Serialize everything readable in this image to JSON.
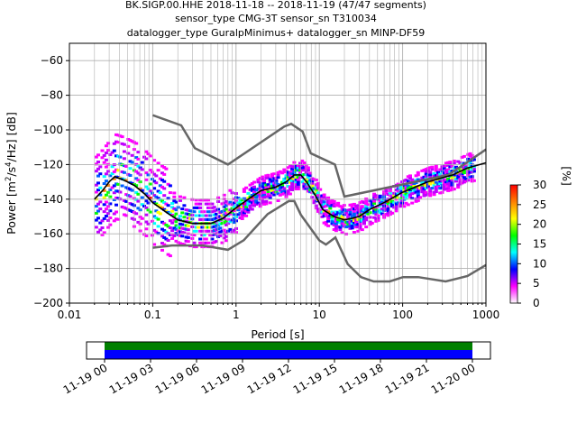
{
  "chart_data": {
    "type": "heatmap",
    "title_lines": [
      "BK.SIGP.00.HHE   2018-11-18 -- 2018-11-19  (47/47 segments)",
      "sensor_type CMG-3T sensor_sn T310034",
      "datalogger_type GuralpMinimus+ datalogger_sn MINP-DF59"
    ],
    "xlabel": "Period [s]",
    "ylabel_parts": [
      "Power [m",
      "2",
      "/s",
      "4",
      "/Hz] [dB]"
    ],
    "x_scale": "log",
    "xlim": [
      0.01,
      1000
    ],
    "ylim": [
      -200,
      -50
    ],
    "x_ticks": [
      {
        "value": 0.01,
        "label": "0.01"
      },
      {
        "value": 0.1,
        "label": "0.1"
      },
      {
        "value": 1,
        "label": "1"
      },
      {
        "value": 10,
        "label": "10"
      },
      {
        "value": 100,
        "label": "100"
      },
      {
        "value": 1000,
        "label": "1000"
      }
    ],
    "y_ticks": [
      {
        "value": -60,
        "label": "−60"
      },
      {
        "value": -80,
        "label": "−80"
      },
      {
        "value": -100,
        "label": "−100"
      },
      {
        "value": -120,
        "label": "−120"
      },
      {
        "value": -140,
        "label": "−140"
      },
      {
        "value": -160,
        "label": "−160"
      },
      {
        "value": -180,
        "label": "−180"
      },
      {
        "value": -200,
        "label": "−200"
      }
    ],
    "grid": true,
    "nhnm": [
      [
        0.1,
        -168
      ],
      [
        0.17,
        -166.7
      ],
      [
        0.4,
        -166.7
      ],
      [
        0.8,
        -169.2
      ],
      [
        1.24,
        -163.7
      ],
      [
        2.4,
        -148.6
      ],
      [
        4.3,
        -141.1
      ],
      [
        5.0,
        -141.1
      ],
      [
        6.0,
        -149
      ],
      [
        10.0,
        -163.8
      ],
      [
        12.0,
        -166.2
      ],
      [
        15.6,
        -162.1
      ],
      [
        21.9,
        -177.5
      ],
      [
        31.6,
        -185
      ],
      [
        45,
        -187.5
      ],
      [
        70,
        -187.5
      ],
      [
        101,
        -185
      ],
      [
        154,
        -185
      ],
      [
        328,
        -187.5
      ],
      [
        600,
        -184.4
      ],
      [
        1000,
        -178
      ]
    ],
    "nlnm": [
      [
        0.1,
        -91.5
      ],
      [
        0.22,
        -97.4
      ],
      [
        0.32,
        -110.5
      ],
      [
        0.8,
        -120
      ],
      [
        3.8,
        -98
      ],
      [
        4.6,
        -96.5
      ],
      [
        6.3,
        -101
      ],
      [
        7.9,
        -113.5
      ],
      [
        15.4,
        -120
      ],
      [
        20,
        -138.5
      ],
      [
        354.8,
        -126
      ],
      [
        1000,
        -111.3
      ]
    ],
    "mean": [
      [
        0.02,
        -140
      ],
      [
        0.025,
        -135
      ],
      [
        0.03,
        -130
      ],
      [
        0.035,
        -127
      ],
      [
        0.045,
        -129
      ],
      [
        0.06,
        -132
      ],
      [
        0.08,
        -137
      ],
      [
        0.1,
        -142
      ],
      [
        0.15,
        -148
      ],
      [
        0.2,
        -152
      ],
      [
        0.3,
        -154
      ],
      [
        0.5,
        -154
      ],
      [
        0.7,
        -151
      ],
      [
        1.0,
        -145
      ],
      [
        1.5,
        -139
      ],
      [
        2.0,
        -135
      ],
      [
        3.0,
        -133
      ],
      [
        4.0,
        -130
      ],
      [
        5.0,
        -126
      ],
      [
        6.0,
        -126
      ],
      [
        7.0,
        -130
      ],
      [
        9.0,
        -138
      ],
      [
        11.0,
        -146
      ],
      [
        15.0,
        -150
      ],
      [
        20.0,
        -152
      ],
      [
        25.0,
        -151
      ],
      [
        30.0,
        -150
      ],
      [
        40.0,
        -146
      ],
      [
        60.0,
        -142
      ],
      [
        100.0,
        -136
      ],
      [
        200.0,
        -130
      ],
      [
        400.0,
        -126
      ],
      [
        600.0,
        -122
      ],
      [
        1000.0,
        -119
      ]
    ],
    "colorbar": {
      "label": "[%]",
      "range": [
        0,
        30
      ],
      "ticks": [
        {
          "value": 0,
          "label": "0"
        },
        {
          "value": 5,
          "label": "5"
        },
        {
          "value": 10,
          "label": "10"
        },
        {
          "value": 15,
          "label": "15"
        },
        {
          "value": 20,
          "label": "20"
        },
        {
          "value": 25,
          "label": "25"
        },
        {
          "value": 30,
          "label": "30"
        }
      ],
      "colors": [
        "#ffffff",
        "#ff00ff",
        "#0000ff",
        "#00ffff",
        "#00ff00",
        "#ffff00",
        "#ff8000",
        "#ff0000"
      ]
    },
    "timeline": {
      "start_hour": 0,
      "end_hour": 24,
      "axis_min_hour": -1.2,
      "axis_max_hour": 1.2,
      "bar_colors": [
        "#008000",
        "#0000ff"
      ],
      "ticks": [
        {
          "hour": 0,
          "label": "11-19 00"
        },
        {
          "hour": 3,
          "label": "11-19 03"
        },
        {
          "hour": 6,
          "label": "11-19 06"
        },
        {
          "hour": 9,
          "label": "11-19 09"
        },
        {
          "hour": 12,
          "label": "11-19 12"
        },
        {
          "hour": 15,
          "label": "11-19 15"
        },
        {
          "hour": 18,
          "label": "11-19 18"
        },
        {
          "hour": 21,
          "label": "11-19 21"
        },
        {
          "hour": 24,
          "label": "11-20 00"
        }
      ]
    }
  }
}
